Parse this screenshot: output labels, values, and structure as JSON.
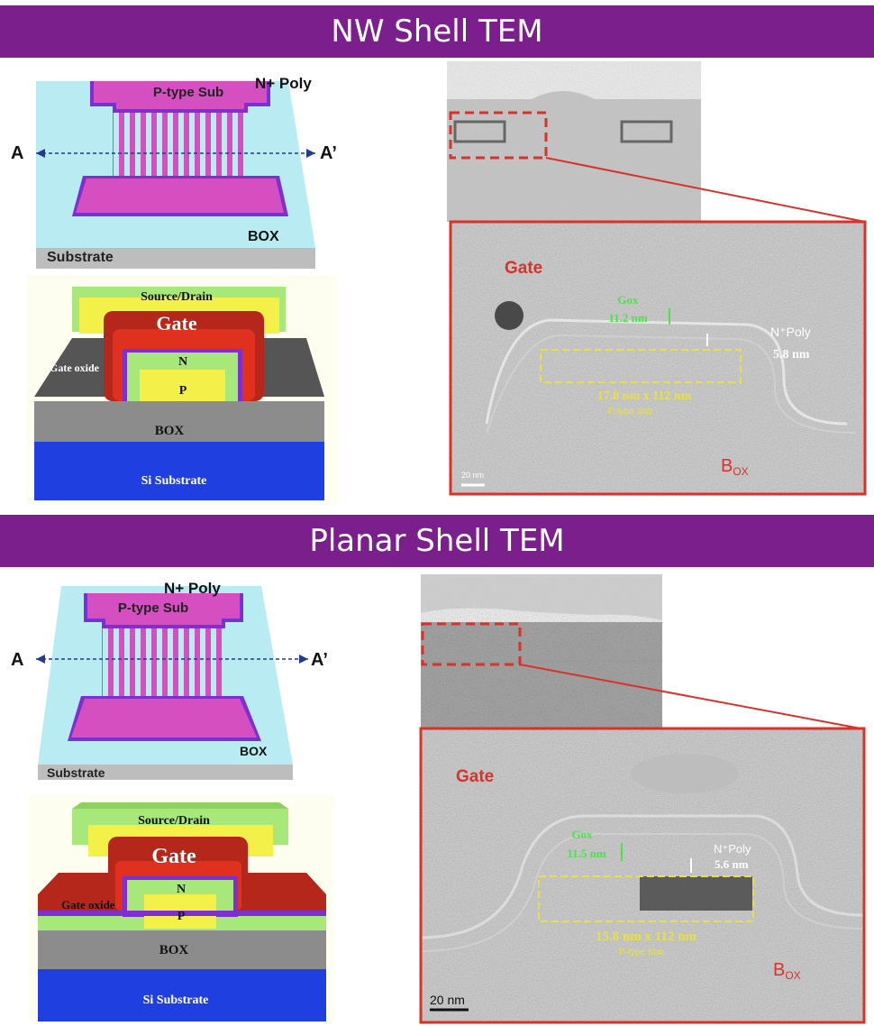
{
  "sections": [
    {
      "title": "NW Shell TEM",
      "layout": {
        "label_top": "N+ Poly",
        "label_channel": "P-type Sub",
        "label_box": "BOX",
        "label_substrate": "Substrate",
        "cut_left": "A",
        "cut_right": "A’"
      },
      "cross_section": {
        "source_drain": "Source/Drain",
        "gate": "Gate",
        "gate_oxide": "Gate oxide",
        "n": "N",
        "p": "P",
        "box": "BOX",
        "si_substrate": "Si Substrate"
      },
      "tem": {
        "gate": "Gate",
        "gox_label": "Gox",
        "gox_value": "11.2 nm",
        "poly_label": "N⁺Poly",
        "poly_value": "5.8 nm",
        "dimension": "17.8 nm x 112 nm",
        "sub_label": "P-type Sub",
        "box_main": "B",
        "box_sub": "OX",
        "scale": "20 nm"
      }
    },
    {
      "title": "Planar Shell TEM",
      "layout": {
        "label_top": "N+ Poly",
        "label_channel": "P-type Sub",
        "label_box": "BOX",
        "label_substrate": "Substrate",
        "cut_left": "A",
        "cut_right": "A’"
      },
      "cross_section": {
        "source_drain": "Source/Drain",
        "gate": "Gate",
        "gate_oxide": "Gate oxide",
        "n": "N",
        "p": "P",
        "box": "BOX",
        "si_substrate": "Si Substrate"
      },
      "tem": {
        "gate": "Gate",
        "gox_label": "Gox",
        "gox_value": "11.5 nm",
        "poly_label": "N⁺Poly",
        "poly_value": "5.6 nm",
        "dimension": "15.8 nm x 112 nm",
        "sub_label": "P-type Sub",
        "box_main": "B",
        "box_sub": "OX",
        "scale": "20 nm"
      }
    }
  ],
  "colors": {
    "banner": "#7b1f8c",
    "magenta": "#d64fc0",
    "purple_edge": "#7d2fd0",
    "cyan": "#b9ecf2",
    "gate_red": "#b5261b",
    "source_drain_green": "#a8e87a",
    "yellow": "#f4f04a",
    "box_gray": "#8c8c8c",
    "si_blue": "#1f3fe0",
    "tem_red": "#d8322a",
    "tem_green": "#4fe04f",
    "tem_yellow": "#e8e04a"
  }
}
